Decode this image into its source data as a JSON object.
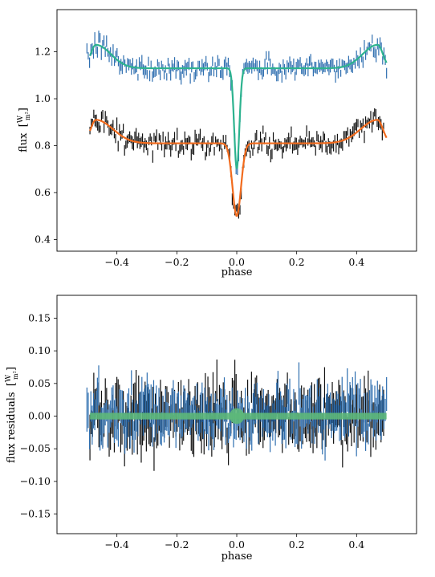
{
  "chart_data": [
    {
      "type": "line",
      "title": "",
      "xlabel": "phase",
      "ylabel": "flux [W/m²]",
      "ylabel_main": "flux",
      "ylabel_unit_num": "W",
      "ylabel_unit_den": "m²",
      "xlim": [
        -0.6,
        0.6
      ],
      "ylim": [
        0.35,
        1.38
      ],
      "xticks": [
        -0.4,
        -0.2,
        0.0,
        0.2,
        0.4
      ],
      "xtick_labels": [
        "−0.4",
        "−0.2",
        "0.0",
        "0.2",
        "0.4"
      ],
      "yticks": [
        0.4,
        0.6,
        0.8,
        1.0,
        1.2
      ],
      "ytick_labels": [
        "0.4",
        "0.6",
        "0.8",
        "1.0",
        "1.2"
      ],
      "grid": false,
      "series": [
        {
          "kind": "errorbar",
          "color": "#2f6fb0",
          "phase_range": [
            -0.5,
            0.5
          ],
          "model": {
            "base": 1.13,
            "peak": 1.23,
            "peak_width": 0.07,
            "dip_depth": 0.43,
            "dip_width": 0.012
          },
          "scatter": 0.04
        },
        {
          "kind": "model_line",
          "color": "#2db38f",
          "phase_range": [
            -0.49,
            0.5
          ],
          "model": {
            "base": 1.13,
            "peak": 1.23,
            "peak_width": 0.07,
            "dip_depth": 0.43,
            "dip_width": 0.012
          }
        },
        {
          "kind": "errorbar",
          "color": "#111111",
          "phase_range": [
            -0.49,
            0.49
          ],
          "model": {
            "base": 0.81,
            "peak": 0.91,
            "peak_width": 0.08,
            "dip_depth": 0.31,
            "dip_width": 0.02
          },
          "scatter": 0.04
        },
        {
          "kind": "model_line",
          "color": "#f26b1d",
          "phase_range": [
            -0.49,
            0.5
          ],
          "model": {
            "base": 0.81,
            "peak": 0.91,
            "peak_width": 0.08,
            "dip_depth": 0.31,
            "dip_width": 0.02
          }
        }
      ]
    },
    {
      "type": "line",
      "title": "",
      "xlabel": "phase",
      "ylabel": "flux residuals [W/m²]",
      "ylabel_main": "flux residuals",
      "ylabel_unit_num": "W",
      "ylabel_unit_den": "m²",
      "xlim": [
        -0.6,
        0.6
      ],
      "ylim": [
        -0.18,
        0.185
      ],
      "xticks": [
        -0.4,
        -0.2,
        0.0,
        0.2,
        0.4
      ],
      "xtick_labels": [
        "−0.4",
        "−0.2",
        "0.0",
        "0.2",
        "0.4"
      ],
      "yticks": [
        -0.15,
        -0.1,
        -0.05,
        0.0,
        0.05,
        0.1,
        0.15
      ],
      "ytick_labels": [
        "−0.15",
        "−0.10",
        "−0.05",
        "0.00",
        "0.05",
        "0.10",
        "0.15"
      ],
      "grid": false,
      "series": [
        {
          "kind": "residual_errorbar",
          "color": "#111111",
          "phase_range": [
            -0.49,
            0.49
          ],
          "scatter": 0.045
        },
        {
          "kind": "residual_errorbar",
          "color": "#2f6fb0",
          "phase_range": [
            -0.5,
            0.5
          ],
          "scatter": 0.038
        },
        {
          "kind": "zero_band",
          "color": "#5db87a",
          "phase_range": [
            -0.49,
            0.5
          ],
          "halfwidth": 0.005
        }
      ]
    }
  ]
}
